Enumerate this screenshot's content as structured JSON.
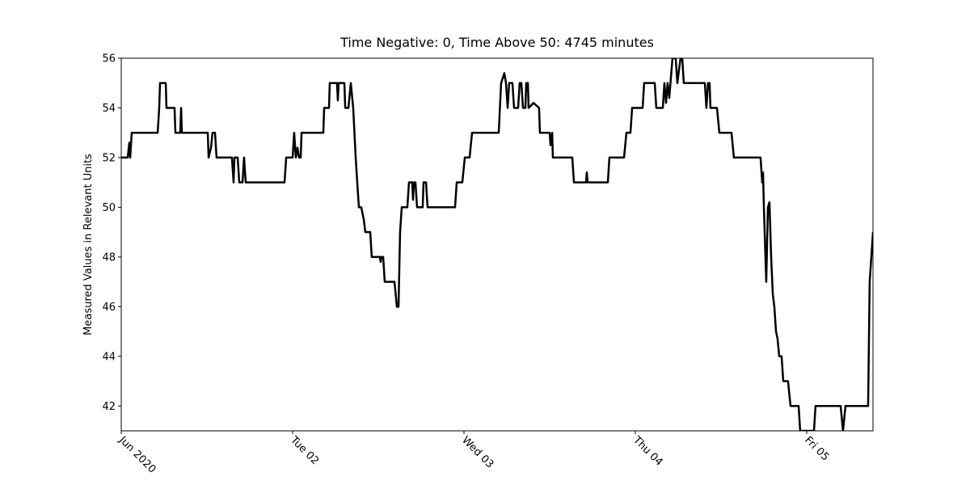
{
  "chart_data": {
    "type": "line",
    "title": "Time Negative: 0, Time Above 50: 4745 minutes",
    "ylabel": "Measured Values in Relevant Units",
    "color": "#000000",
    "x": [
      "2020-06-01T00:00",
      "2020-06-01T00:54",
      "2020-06-01T01:08",
      "2020-06-01T01:15",
      "2020-06-01T01:28",
      "2020-06-01T05:06",
      "2020-06-01T05:19",
      "2020-06-01T05:26",
      "2020-06-01T06:14",
      "2020-06-01T06:20",
      "2020-06-01T07:28",
      "2020-06-01T07:35",
      "2020-06-01T08:16",
      "2020-06-01T08:23",
      "2020-06-01T08:29",
      "2020-06-01T12:07",
      "2020-06-01T12:14",
      "2020-06-01T12:34",
      "2020-06-01T12:47",
      "2020-06-01T13:08",
      "2020-06-01T13:21",
      "2020-06-01T15:30",
      "2020-06-01T15:44",
      "2020-06-01T15:51",
      "2020-06-01T16:18",
      "2020-06-01T16:32",
      "2020-06-01T16:59",
      "2020-06-01T17:12",
      "2020-06-01T17:26",
      "2020-06-01T22:52",
      "2020-06-01T23:06",
      "2020-06-02T00:00",
      "2020-06-02T00:13",
      "2020-06-02T00:27",
      "2020-06-02T00:41",
      "2020-06-02T00:54",
      "2020-06-02T01:08",
      "2020-06-02T01:15",
      "2020-06-02T04:18",
      "2020-06-02T04:25",
      "2020-06-02T05:06",
      "2020-06-02T05:12",
      "2020-06-02T06:13",
      "2020-06-02T06:20",
      "2020-06-02T06:27",
      "2020-06-02T07:15",
      "2020-06-02T07:22",
      "2020-06-02T07:49",
      "2020-06-02T08:09",
      "2020-06-02T08:29",
      "2020-06-02T08:50",
      "2020-06-02T09:03",
      "2020-06-02T09:17",
      "2020-06-02T09:37",
      "2020-06-02T09:58",
      "2020-06-02T10:11",
      "2020-06-02T10:52",
      "2020-06-02T11:05",
      "2020-06-02T12:13",
      "2020-06-02T12:20",
      "2020-06-02T12:27",
      "2020-06-02T12:41",
      "2020-06-02T12:54",
      "2020-06-02T14:16",
      "2020-06-02T14:36",
      "2020-06-02T14:50",
      "2020-06-02T15:03",
      "2020-06-02T15:17",
      "2020-06-02T16:04",
      "2020-06-02T16:18",
      "2020-06-02T16:45",
      "2020-06-02T16:52",
      "2020-06-02T16:59",
      "2020-06-02T17:12",
      "2020-06-02T17:26",
      "2020-06-02T18:13",
      "2020-06-02T18:20",
      "2020-06-02T18:41",
      "2020-06-02T18:54",
      "2020-06-02T22:45",
      "2020-06-02T22:59",
      "2020-06-02T23:46",
      "2020-06-03T00:07",
      "2020-06-03T00:47",
      "2020-06-03T01:08",
      "2020-06-03T04:52",
      "2020-06-03T05:12",
      "2020-06-03T05:26",
      "2020-06-03T05:39",
      "2020-06-03T05:53",
      "2020-06-03T06:07",
      "2020-06-03T06:20",
      "2020-06-03T06:47",
      "2020-06-03T07:01",
      "2020-06-03T07:35",
      "2020-06-03T07:48",
      "2020-06-03T08:02",
      "2020-06-03T08:16",
      "2020-06-03T08:36",
      "2020-06-03T08:43",
      "2020-06-03T08:57",
      "2020-06-03T09:03",
      "2020-06-03T09:44",
      "2020-06-03T10:31",
      "2020-06-03T10:38",
      "2020-06-03T12:00",
      "2020-06-03T12:07",
      "2020-06-03T12:21",
      "2020-06-03T12:27",
      "2020-06-03T15:10",
      "2020-06-03T15:24",
      "2020-06-03T17:06",
      "2020-06-03T17:12",
      "2020-06-03T17:19",
      "2020-06-03T20:09",
      "2020-06-03T20:22",
      "2020-06-03T22:25",
      "2020-06-03T22:45",
      "2020-06-03T23:19",
      "2020-06-03T23:33",
      "2020-06-04T01:01",
      "2020-06-04T01:14",
      "2020-06-04T02:43",
      "2020-06-04T02:56",
      "2020-06-04T03:51",
      "2020-06-04T04:04",
      "2020-06-04T04:18",
      "2020-06-04T04:31",
      "2020-06-04T04:45",
      "2020-06-04T05:12",
      "2020-06-04T05:39",
      "2020-06-04T05:53",
      "2020-06-04T06:06",
      "2020-06-04T06:20",
      "2020-06-04T06:34",
      "2020-06-04T06:47",
      "2020-06-04T09:44",
      "2020-06-04T09:57",
      "2020-06-04T10:11",
      "2020-06-04T10:24",
      "2020-06-04T10:31",
      "2020-06-04T11:26",
      "2020-06-04T11:46",
      "2020-06-04T13:28",
      "2020-06-04T13:48",
      "2020-06-04T17:32",
      "2020-06-04T17:46",
      "2020-06-04T17:53",
      "2020-06-04T18:00",
      "2020-06-04T18:20",
      "2020-06-04T18:34",
      "2020-06-04T18:47",
      "2020-06-04T19:01",
      "2020-06-04T19:15",
      "2020-06-04T19:28",
      "2020-06-04T19:42",
      "2020-06-04T19:55",
      "2020-06-04T20:09",
      "2020-06-04T20:29",
      "2020-06-04T20:43",
      "2020-06-04T21:23",
      "2020-06-04T21:44",
      "2020-06-04T22:52",
      "2020-06-04T23:05",
      "2020-06-05T01:01",
      "2020-06-05T01:14",
      "2020-06-05T04:45",
      "2020-06-05T05:05",
      "2020-06-05T05:26",
      "2020-06-05T08:36",
      "2020-06-05T08:49",
      "2020-06-05T09:03",
      "2020-06-05T09:17"
    ],
    "values": [
      52,
      52,
      52.6,
      52,
      53,
      53,
      54,
      55,
      55,
      54,
      54,
      53,
      53,
      54,
      53,
      53,
      52,
      52.4,
      53,
      53,
      52,
      52,
      51,
      52,
      52,
      51,
      51,
      52,
      51,
      51,
      52,
      52,
      53,
      52,
      52.4,
      52,
      52,
      53,
      53,
      54,
      54,
      55,
      55,
      54.3,
      55,
      55,
      54,
      54,
      55,
      54,
      52,
      51,
      50,
      50,
      49.5,
      49,
      49,
      48,
      48,
      47.8,
      48,
      48,
      47,
      47,
      46,
      46,
      49,
      50,
      50,
      51,
      51,
      50.3,
      51,
      51,
      50,
      50,
      51,
      51,
      50,
      50,
      51,
      51,
      52,
      52,
      53,
      53,
      55,
      55.2,
      55.4,
      55,
      54,
      55,
      55,
      54,
      54,
      55,
      55,
      54,
      54,
      55,
      55,
      54,
      54.2,
      54,
      53,
      53,
      52.5,
      53,
      52,
      52,
      51,
      51,
      51.4,
      51,
      51,
      52,
      52,
      53,
      53,
      54,
      54,
      55,
      55,
      54,
      54,
      55,
      54.2,
      55,
      54.4,
      56,
      56,
      55,
      55.5,
      56,
      56,
      55,
      55,
      54,
      55,
      55,
      54,
      54,
      53,
      53,
      52,
      52,
      51,
      51.4,
      50,
      47,
      50,
      50.2,
      48,
      46.5,
      46,
      45,
      44.7,
      44,
      44,
      43,
      43,
      42,
      42,
      41,
      41,
      42,
      42,
      41,
      42,
      42,
      47,
      48,
      49
    ],
    "xlim": [
      "2020-06-01T00:00",
      "2020-06-05T09:17"
    ],
    "xticks": [
      {
        "value": "2020-06-01T00:00",
        "label": "Jun 2020"
      },
      {
        "value": "2020-06-02T00:00",
        "label": "Tue 02"
      },
      {
        "value": "2020-06-03T00:00",
        "label": "Wed 03"
      },
      {
        "value": "2020-06-04T00:00",
        "label": "Thu 04"
      },
      {
        "value": "2020-06-05T00:00",
        "label": "Fri 05"
      }
    ],
    "ylim": [
      41,
      56
    ],
    "yticks": [
      42,
      44,
      46,
      48,
      50,
      52,
      54,
      56
    ]
  }
}
